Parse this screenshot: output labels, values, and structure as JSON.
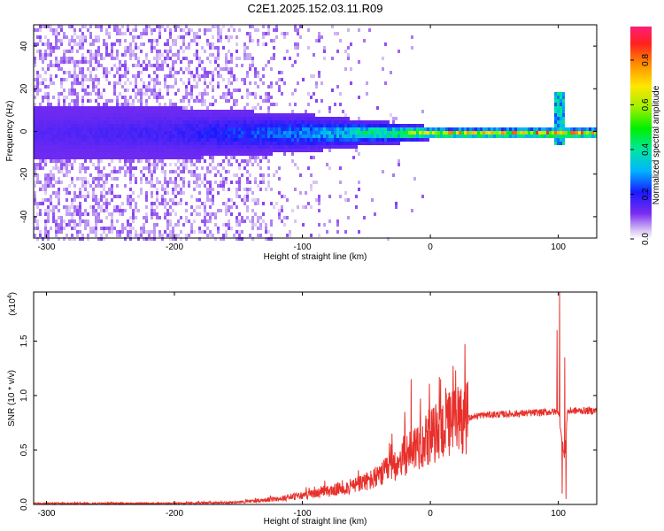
{
  "page": {
    "title": "C2E1.2025.152.03.11.R09"
  },
  "colors": {
    "snr_line": "#e8302b",
    "axes": "#000000",
    "background": "#ffffff"
  },
  "chart_data": [
    {
      "type": "heatmap",
      "title": "C2E1.2025.152.03.11.R09",
      "xlabel": "Height of straight line (km)",
      "ylabel": "Frequency (Hz)",
      "xlim": [
        -310,
        130
      ],
      "ylim": [
        -50,
        50
      ],
      "xticks": [
        -300,
        -200,
        -100,
        0,
        100
      ],
      "xtick_labels": [
        "-300",
        "-200",
        "-100",
        "0",
        "100"
      ],
      "yticks": [
        -40,
        -20,
        0,
        20,
        40
      ],
      "ytick_labels": [
        "-40",
        "-20",
        "0",
        "20",
        "40"
      ],
      "colorbar": {
        "label": "Normalized spectral amplitude",
        "range": [
          0,
          0.95
        ],
        "ticks": [
          0.0,
          0.2,
          0.4,
          0.6,
          0.8
        ],
        "tick_labels": [
          "0.0",
          "0.2",
          "0.4",
          "0.6",
          "0.8"
        ],
        "colormap": "rainbow"
      },
      "features": {
        "central_band_freq_hz": 0,
        "band_halfwidth_hz_at_x": [
          [
            -310,
            12
          ],
          [
            -200,
            12
          ],
          [
            -100,
            9
          ],
          [
            -50,
            6
          ],
          [
            -10,
            4
          ],
          [
            0,
            3
          ],
          [
            130,
            3
          ]
        ],
        "peak_amplitude_at_x": [
          [
            -310,
            0.15
          ],
          [
            -200,
            0.18
          ],
          [
            -100,
            0.3
          ],
          [
            -60,
            0.4
          ],
          [
            -20,
            0.55
          ],
          [
            0,
            0.75
          ],
          [
            50,
            0.75
          ],
          [
            100,
            0.8
          ],
          [
            130,
            0.75
          ]
        ],
        "noise_fill_fraction_at_x": [
          [
            -310,
            0.9
          ],
          [
            -200,
            0.8
          ],
          [
            -130,
            0.5
          ],
          [
            -100,
            0.2
          ],
          [
            -50,
            0.05
          ],
          [
            0,
            0.0
          ],
          [
            130,
            0.0
          ]
        ],
        "spike": {
          "x": 100,
          "freq_range": [
            -5,
            20
          ]
        }
      }
    },
    {
      "type": "line",
      "xlabel": "Height of straight line (km)",
      "ylabel": "SNR (10 * v/v)",
      "y_scale_note": "(x10^4)",
      "y_scale_base": "(x10",
      "y_scale_exponent": "4",
      "y_scale_suffix": ")",
      "xlim": [
        -310,
        130
      ],
      "ylim": [
        0,
        1.95
      ],
      "xticks": [
        -300,
        -200,
        -100,
        0,
        100
      ],
      "xtick_labels": [
        "-300",
        "-200",
        "-100",
        "0",
        "100"
      ],
      "yticks": [
        0.0,
        0.5,
        1.0,
        1.5
      ],
      "ytick_labels": [
        "0.0",
        "0.5",
        "1.0",
        "1.5"
      ],
      "series": [
        {
          "envelope_x": [
            -310,
            -250,
            -200,
            -150,
            -120,
            -100,
            -80,
            -60,
            -40,
            -30,
            -20,
            -10,
            0,
            10,
            20,
            30,
            40,
            60,
            80,
            95,
            100,
            103,
            105,
            107,
            110,
            130
          ],
          "envelope_y": [
            0.01,
            0.01,
            0.01,
            0.02,
            0.05,
            0.08,
            0.12,
            0.17,
            0.25,
            0.35,
            0.45,
            0.55,
            0.62,
            0.7,
            0.78,
            0.8,
            0.82,
            0.83,
            0.84,
            0.85,
            0.85,
            0.6,
            0.4,
            0.85,
            0.86,
            0.86
          ],
          "spikes": [
            {
              "x": -30,
              "y": 0.65
            },
            {
              "x": -20,
              "y": 0.85
            },
            {
              "x": -15,
              "y": 1.15
            },
            {
              "x": -8,
              "y": 0.8
            },
            {
              "x": 8,
              "y": 1.15
            },
            {
              "x": 99,
              "y": 1.6
            },
            {
              "x": 101,
              "y": 1.95
            },
            {
              "x": 103,
              "y": 0.1
            },
            {
              "x": 105,
              "y": 1.35
            },
            {
              "x": 106,
              "y": 0.05
            }
          ]
        }
      ]
    }
  ]
}
